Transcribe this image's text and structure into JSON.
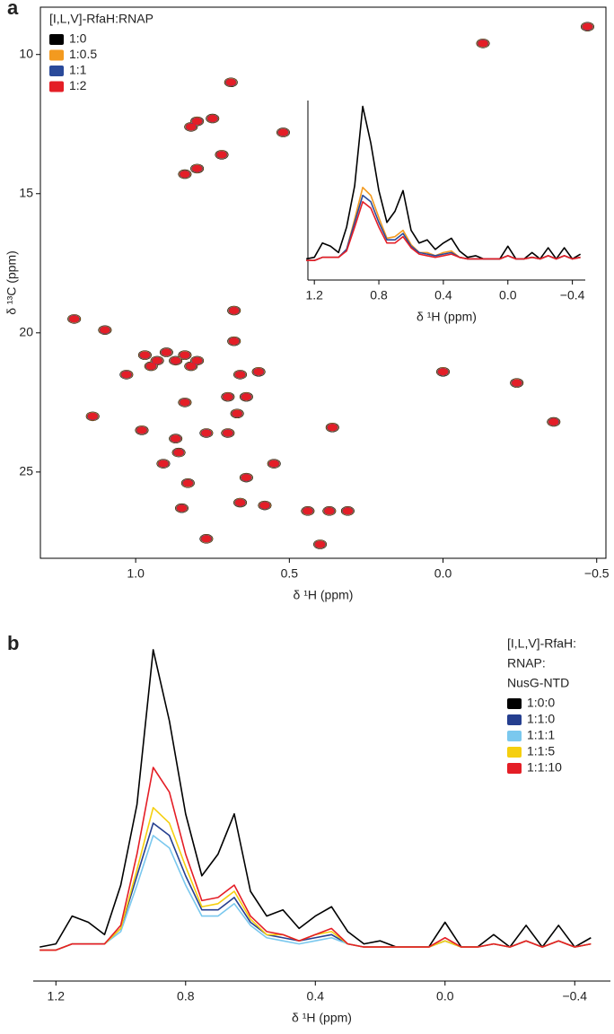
{
  "chart_data": [
    {
      "type": "scatter",
      "panel_label": "a",
      "xlabel": "δ ¹H (ppm)",
      "ylabel": "δ ¹³C (ppm)",
      "legend_title": [
        "[I,L,V]-RfaH:RNAP"
      ],
      "xlim": [
        1.31,
        -0.53
      ],
      "ylim": [
        8.3,
        28.1
      ],
      "xticks": [
        {
          "value": 1,
          "label": "1.0"
        },
        0.5,
        {
          "value": 0,
          "label": "0.0"
        },
        {
          "value": -0.5,
          "label": "−0.5"
        }
      ],
      "yticks": [
        10,
        15,
        20,
        25
      ],
      "x": [
        -0.47,
        -0.13,
        0.52,
        0.69,
        0.8,
        0.75,
        0.82,
        0.72,
        0.8,
        0.84,
        1.2,
        1.1,
        0.68,
        0.68,
        0.66,
        0.6,
        1.03,
        0.93,
        0.87,
        0.8,
        0.84,
        0.7,
        0.64,
        0.67,
        1.14,
        0.7,
        0.77,
        0.87,
        0.98,
        0.86,
        0.91,
        0.55,
        0.64,
        0.83,
        0.66,
        0.58,
        0.85,
        0.44,
        0.37,
        0.31,
        0.77,
        0.4,
        0.36,
        0.0,
        -0.24,
        -0.36,
        0.97,
        0.9,
        0.84,
        0.95,
        0.82
      ],
      "y": [
        9.0,
        9.6,
        12.8,
        11.0,
        12.4,
        12.3,
        12.6,
        13.6,
        14.1,
        14.3,
        19.5,
        19.9,
        19.2,
        20.3,
        21.5,
        21.4,
        21.5,
        21.0,
        21.0,
        21.0,
        22.5,
        22.3,
        22.3,
        22.9,
        23.0,
        23.6,
        23.6,
        23.8,
        23.5,
        24.3,
        24.7,
        24.7,
        25.2,
        25.4,
        26.1,
        26.2,
        26.3,
        26.4,
        26.4,
        26.4,
        27.4,
        27.6,
        23.4,
        21.4,
        21.8,
        23.2,
        20.8,
        20.7,
        20.8,
        21.2,
        21.2
      ],
      "series": [
        {
          "name": "1:0",
          "color": "#000000"
        },
        {
          "name": "1:0.5",
          "color": "#f39a1f"
        },
        {
          "name": "1:1",
          "color": "#2a4a9a"
        },
        {
          "name": "1:2",
          "color": "#e41e26"
        }
      ]
    },
    {
      "type": "line",
      "xlabel": "δ ¹H (ppm)",
      "xlim": [
        1.24,
        -0.48
      ],
      "ylim": [
        0,
        100
      ],
      "xticks": [
        1.2,
        0.8,
        0.4,
        {
          "value": 0,
          "label": "0.0"
        },
        {
          "value": -0.4,
          "label": "−0.4"
        }
      ],
      "x": [
        1.25,
        1.2,
        1.15,
        1.1,
        1.05,
        1.0,
        0.95,
        0.9,
        0.85,
        0.8,
        0.75,
        0.7,
        0.65,
        0.6,
        0.55,
        0.5,
        0.45,
        0.4,
        0.35,
        0.3,
        0.25,
        0.2,
        0.15,
        0.1,
        0.05,
        0.0,
        -0.05,
        -0.1,
        -0.15,
        -0.2,
        -0.25,
        -0.3,
        -0.35,
        -0.4,
        -0.45
      ],
      "series": [
        {
          "name": "1:0",
          "color": "#000000",
          "values": [
            2,
            3,
            12,
            10,
            6,
            22,
            48,
            98,
            75,
            45,
            25,
            32,
            45,
            20,
            12,
            14,
            8,
            12,
            15,
            7,
            3,
            4,
            2,
            2,
            2,
            10,
            2,
            2,
            6,
            2,
            9,
            2,
            9,
            2,
            5
          ]
        },
        {
          "name": "1:0.5",
          "color": "#f39a1f",
          "values": [
            1,
            1,
            3,
            3,
            3,
            8,
            27,
            47,
            42,
            28,
            15,
            16,
            20,
            11,
            6,
            6,
            4,
            6,
            7,
            3,
            2,
            2,
            2,
            2,
            2,
            4,
            2,
            2,
            3,
            2,
            4,
            2,
            4,
            2,
            3
          ]
        },
        {
          "name": "1:1",
          "color": "#2a4a9a",
          "values": [
            1,
            1,
            3,
            3,
            3,
            8,
            25,
            42,
            38,
            25,
            14,
            14,
            18,
            10,
            6,
            5,
            4,
            5,
            6,
            3,
            2,
            2,
            2,
            2,
            2,
            4,
            2,
            2,
            3,
            2,
            4,
            2,
            4,
            2,
            3
          ]
        },
        {
          "name": "1:2",
          "color": "#e41e26",
          "values": [
            1,
            1,
            3,
            3,
            3,
            7,
            22,
            38,
            34,
            22,
            12,
            12,
            16,
            9,
            5,
            4,
            3,
            4,
            5,
            3,
            2,
            2,
            2,
            2,
            2,
            4,
            2,
            2,
            3,
            2,
            4,
            2,
            4,
            2,
            3
          ]
        }
      ]
    },
    {
      "type": "line",
      "panel_label": "b",
      "xlabel": "δ ¹H (ppm)",
      "legend_title": [
        "[I,L,V]-RfaH:",
        "RNAP:",
        "NusG-NTD"
      ],
      "xlim": [
        1.27,
        -0.51
      ],
      "ylim": [
        0,
        100
      ],
      "xticks": [
        1.2,
        0.8,
        0.4,
        {
          "value": 0,
          "label": "0.0"
        },
        {
          "value": -0.4,
          "label": "−0.4"
        }
      ],
      "x": [
        1.25,
        1.2,
        1.15,
        1.1,
        1.05,
        1.0,
        0.95,
        0.9,
        0.85,
        0.8,
        0.75,
        0.7,
        0.65,
        0.6,
        0.55,
        0.5,
        0.45,
        0.4,
        0.35,
        0.3,
        0.25,
        0.2,
        0.15,
        0.1,
        0.05,
        0.0,
        -0.05,
        -0.1,
        -0.15,
        -0.2,
        -0.25,
        -0.3,
        -0.35,
        -0.4,
        -0.45
      ],
      "series": [
        {
          "name": "1:0:0",
          "color": "#000000",
          "values": [
            2,
            3,
            12,
            10,
            6,
            22,
            48,
            98,
            75,
            45,
            25,
            32,
            45,
            20,
            12,
            14,
            8,
            12,
            15,
            7,
            3,
            4,
            2,
            2,
            2,
            10,
            2,
            2,
            6,
            2,
            9,
            2,
            9,
            2,
            5
          ]
        },
        {
          "name": "1:1:0",
          "color": "#253f8f",
          "values": [
            1,
            1,
            3,
            3,
            3,
            8,
            25,
            42,
            38,
            25,
            14,
            14,
            18,
            10,
            6,
            5,
            4,
            5,
            6,
            3,
            2,
            2,
            2,
            2,
            2,
            4,
            2,
            2,
            3,
            2,
            4,
            2,
            4,
            2,
            3
          ]
        },
        {
          "name": "1:1:1",
          "color": "#7ac8ee",
          "values": [
            1,
            1,
            3,
            3,
            3,
            7,
            22,
            38,
            34,
            22,
            12,
            12,
            16,
            9,
            5,
            4,
            3,
            4,
            5,
            3,
            2,
            2,
            2,
            2,
            2,
            4,
            2,
            2,
            3,
            2,
            4,
            2,
            4,
            2,
            3
          ]
        },
        {
          "name": "1:1:5",
          "color": "#f5cf0f",
          "values": [
            1,
            1,
            3,
            3,
            3,
            8,
            27,
            47,
            42,
            28,
            15,
            16,
            20,
            11,
            6,
            6,
            4,
            6,
            7,
            3,
            2,
            2,
            2,
            2,
            2,
            4,
            2,
            2,
            3,
            2,
            4,
            2,
            4,
            2,
            3
          ]
        },
        {
          "name": "1:1:10",
          "color": "#e41e26",
          "values": [
            1,
            1,
            3,
            3,
            3,
            9,
            32,
            60,
            52,
            32,
            17,
            18,
            22,
            12,
            7,
            6,
            4,
            6,
            8,
            3,
            2,
            2,
            2,
            2,
            2,
            5,
            2,
            2,
            3,
            2,
            4,
            2,
            4,
            2,
            3
          ]
        }
      ]
    }
  ]
}
